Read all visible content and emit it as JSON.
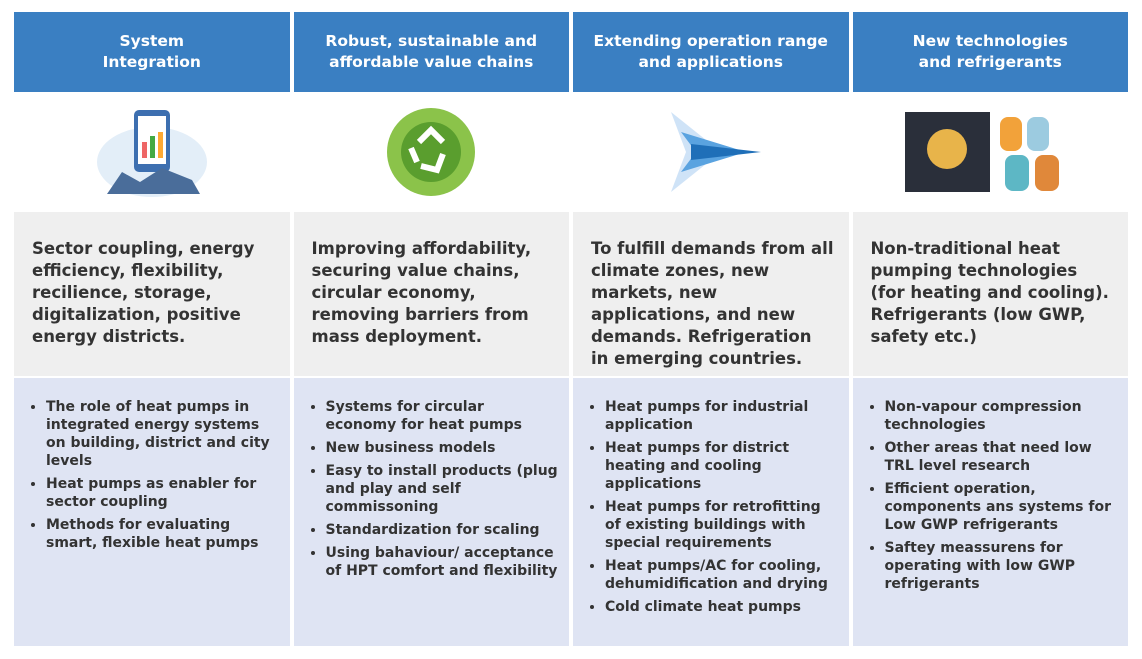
{
  "columns": [
    {
      "title": "System\nIntegration",
      "description": "Sector coupling, energy efficiency, flexibility, recilience, storage, digitalization, positive energy districts.",
      "bullets": [
        "The role of heat pumps in integrated energy systems on building, district and city levels",
        "Heat pumps as enabler for sector coupling",
        "Methods for evaluating smart, flexible heat pumps"
      ]
    },
    {
      "title": "Robust, sustainable and\naffordable value chains",
      "description": "Improving affordability, securing value chains, circular economy, removing barriers from mass deployment.",
      "bullets": [
        "Systems for circular economy for heat pumps",
        "New business models",
        "Easy to install products (plug and play and self commissoning",
        "Standardization for scaling",
        "Using bahaviour/ acceptance of HPT comfort and flexibility"
      ]
    },
    {
      "title": "Extending operation range\nand applications",
      "description": "To fulfill demands from all climate zones, new markets, new applications, and new demands. Refrigeration in emerging countries.",
      "bullets": [
        "Heat pumps for industrial application",
        "Heat pumps for district heating and cooling applications",
        "Heat pumps for retrofitting of existing buildings with special requirements",
        "Heat pumps/AC for cooling, dehumidification and drying",
        "Cold climate heat pumps"
      ]
    },
    {
      "title": "New technologies\nand refrigerants",
      "description": "Non-traditional heat pumping technologies (for heating and cooling). Refrigerants (low GWP, safety etc.)",
      "bullets": [
        "Non-vapour compression technologies",
        "Other areas that need low TRL level research",
        "Efficient operation, components ans systems for Low GWP refrigerants",
        "Saftey meassurens for operating with low GWP refrigerants"
      ]
    }
  ]
}
